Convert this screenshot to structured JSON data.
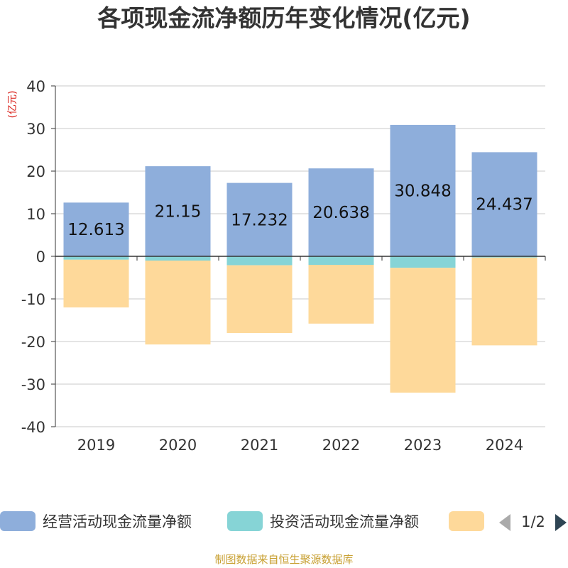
{
  "chart_data": {
    "type": "bar",
    "stacked": true,
    "title": "各项现金流净额历年变化情况(亿元)",
    "ylabel": "(亿元)",
    "ylim": [
      -40,
      40
    ],
    "yticks": [
      40,
      30,
      20,
      10,
      0,
      -10,
      -20,
      -30,
      -40
    ],
    "grid": true,
    "legend_position": "bottom",
    "categories": [
      "2019",
      "2020",
      "2021",
      "2022",
      "2023",
      "2024"
    ],
    "series": [
      {
        "name": "经营活动现金流量净额",
        "color": "#8eaedb",
        "values": [
          12.613,
          21.15,
          17.232,
          20.638,
          30.848,
          24.437
        ],
        "labels": [
          "12.613",
          "21.15",
          "17.232",
          "20.638",
          "30.848",
          "24.437"
        ]
      },
      {
        "name": "投资活动现金流量净额",
        "color": "#86d4d6",
        "values": [
          -0.8,
          -1.0,
          -2.1,
          -2.0,
          -2.7,
          -0.3
        ]
      },
      {
        "name": "",
        "color": "#fed99a",
        "values": [
          -11.2,
          -19.7,
          -15.9,
          -13.8,
          -29.3,
          -20.6
        ]
      }
    ],
    "legend_page": "1/2",
    "source": "制图数据来自恒生聚源数据库"
  }
}
